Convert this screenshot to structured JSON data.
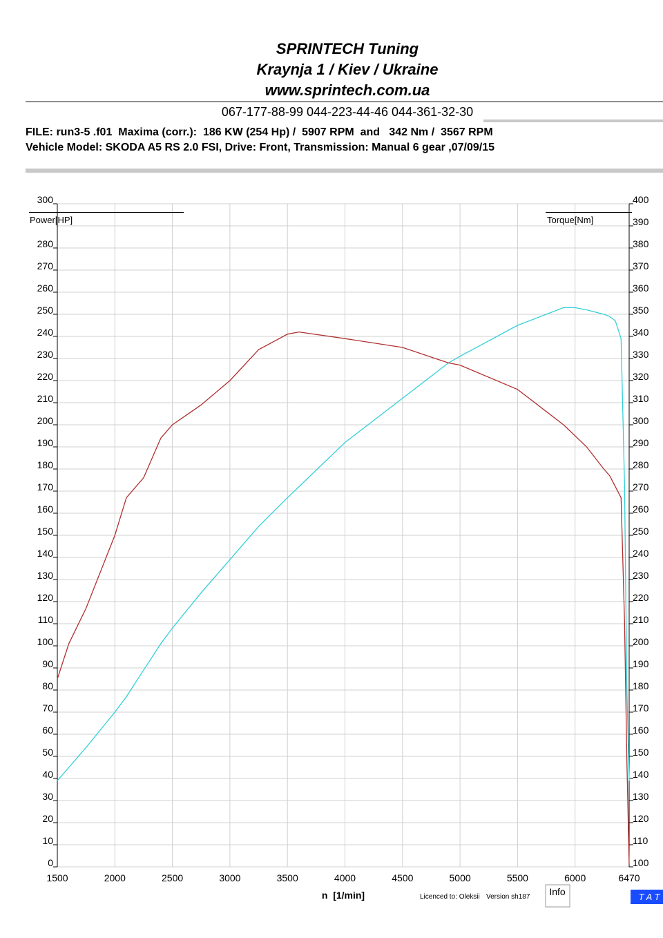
{
  "header": {
    "line1": "SPRINTECH Tuning",
    "line2": "Kraynja 1 / Kiev / Ukraine",
    "line3": "www.sprintech.com.ua",
    "phones": "067-177-88-99 044-223-44-46 044-361-32-30",
    "file": "FILE: run3-5 .f01  Maxima (corr.):  186 KW (254 Hp) /  5907 RPM  and   342 Nm /  3567 RPM",
    "vehicle": "Vehicle Model: SKODA A5 RS 2.0 FSI, Drive: Front, Transmission: Manual 6 gear ,07/09/15"
  },
  "chart_data": {
    "type": "line",
    "grid": true,
    "y_label": "Power[HP]",
    "y2_label": "Torque[Nm]",
    "x_label": "n  [1/min]",
    "x": [
      1500,
      1600,
      1750,
      2000,
      2100,
      2250,
      2400,
      2500,
      2750,
      3000,
      3250,
      3500,
      3600,
      4000,
      4500,
      4900,
      5000,
      5500,
      5750,
      5900,
      6000,
      6100,
      6250,
      6300,
      6350,
      6400,
      6430,
      6450,
      6470
    ],
    "xlim": [
      1500,
      6470
    ],
    "xticks": [
      1500,
      2000,
      2500,
      3000,
      3500,
      4000,
      4500,
      5000,
      5500,
      6000,
      6470
    ],
    "ylim": [
      0,
      300
    ],
    "yticks": [
      0,
      10,
      20,
      30,
      40,
      50,
      60,
      70,
      80,
      90,
      100,
      110,
      120,
      130,
      140,
      150,
      160,
      170,
      180,
      190,
      200,
      210,
      220,
      230,
      240,
      250,
      260,
      270,
      280,
      290,
      300
    ],
    "y2lim": [
      100,
      400
    ],
    "y2ticks": [
      100,
      110,
      120,
      130,
      140,
      150,
      160,
      170,
      180,
      190,
      200,
      210,
      220,
      230,
      240,
      250,
      260,
      270,
      280,
      290,
      300,
      310,
      320,
      330,
      340,
      350,
      360,
      370,
      380,
      390,
      400
    ],
    "series": [
      {
        "name": "Power[HP]",
        "color": "#33d0d8",
        "axis": "y",
        "values": [
          39,
          45,
          54,
          70,
          77,
          89,
          101,
          108,
          124,
          139,
          154,
          167,
          172,
          192,
          212,
          228,
          231,
          245,
          250,
          253,
          253,
          252,
          250,
          249,
          247,
          239,
          173,
          80,
          39
        ]
      },
      {
        "name": "Torque[Nm]",
        "color": "#b03030",
        "axis": "y2",
        "values": [
          185,
          201,
          217,
          250,
          267,
          276,
          294,
          300,
          309,
          320,
          334,
          341,
          342,
          339,
          335,
          328,
          327,
          316,
          306,
          300,
          295,
          290,
          280,
          277,
          272,
          267,
          211,
          148,
          101
        ]
      }
    ]
  },
  "footer": {
    "licence": "Licenced to: Oleksii",
    "version": "Version sh187",
    "info": "Info",
    "tat": "T A T"
  }
}
